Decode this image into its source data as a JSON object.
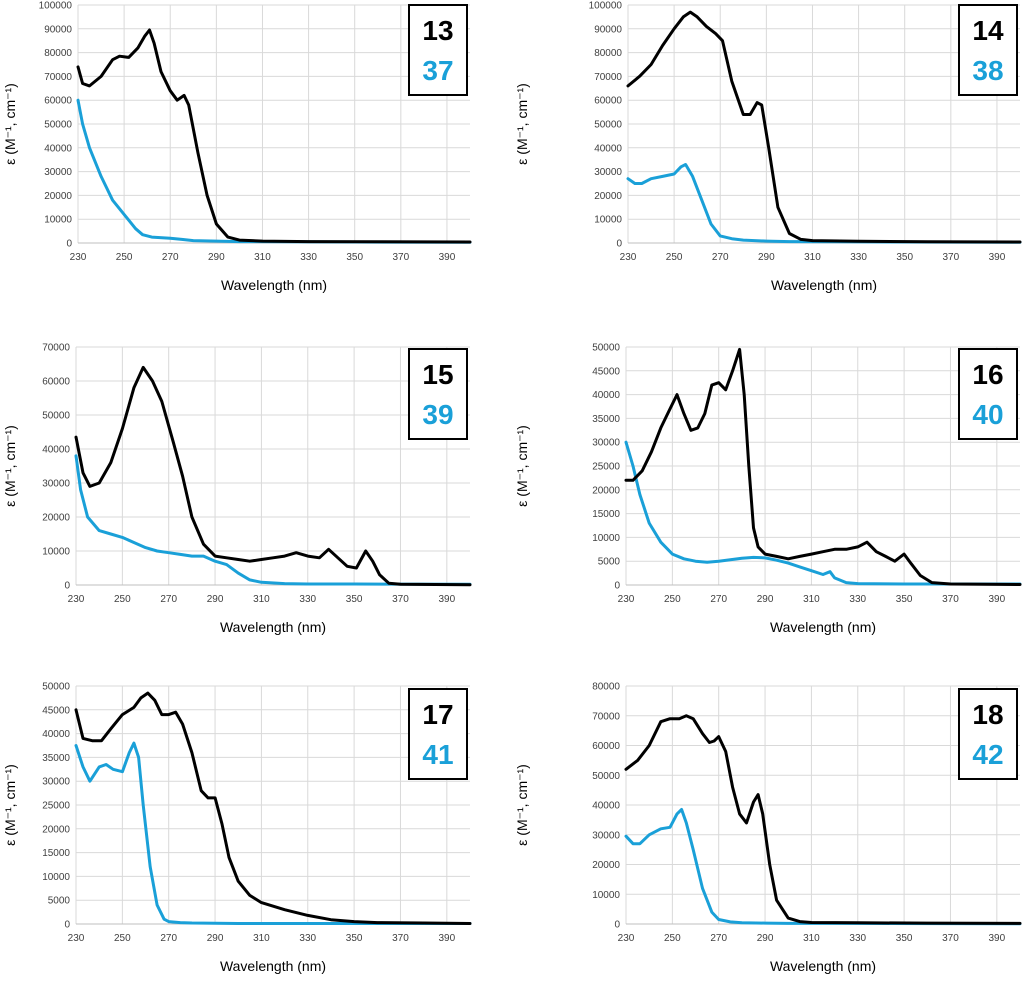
{
  "chart_data": [
    {
      "type": "line",
      "xlabel": "Wavelength (nm)",
      "ylabel": "ε (M⁻¹, cm⁻¹)",
      "xlim": [
        230,
        400
      ],
      "ylim": [
        0,
        100000
      ],
      "x_ticks": [
        230,
        250,
        270,
        290,
        310,
        330,
        350,
        370,
        390
      ],
      "y_ticks": [
        0,
        10000,
        20000,
        30000,
        40000,
        50000,
        60000,
        70000,
        80000,
        90000,
        100000
      ],
      "grid": true,
      "legend_position": "top-right",
      "series": [
        {
          "name": "13",
          "color": "#000000",
          "x": [
            230,
            232,
            235,
            240,
            245,
            248,
            252,
            256,
            259,
            261,
            263,
            266,
            270,
            273,
            276,
            278,
            282,
            286,
            290,
            295,
            300,
            310,
            330,
            360,
            400
          ],
          "y": [
            74000,
            67000,
            66000,
            70000,
            77000,
            78500,
            78000,
            82000,
            87000,
            89500,
            84000,
            72000,
            64000,
            60000,
            62000,
            58000,
            38000,
            20000,
            8000,
            2500,
            1200,
            800,
            600,
            500,
            400
          ]
        },
        {
          "name": "37",
          "color": "#1aa0d8",
          "x": [
            230,
            232,
            235,
            240,
            245,
            250,
            255,
            258,
            262,
            270,
            275,
            280,
            290,
            300,
            320,
            350,
            400
          ],
          "y": [
            60000,
            50000,
            40000,
            28000,
            18000,
            12000,
            6000,
            3500,
            2500,
            2000,
            1500,
            1000,
            800,
            600,
            500,
            400,
            300
          ]
        }
      ]
    },
    {
      "type": "line",
      "xlabel": "Wavelength (nm)",
      "ylabel": "ε (M⁻¹, cm⁻¹)",
      "xlim": [
        230,
        400
      ],
      "ylim": [
        0,
        100000
      ],
      "x_ticks": [
        230,
        250,
        270,
        290,
        310,
        330,
        350,
        370,
        390
      ],
      "y_ticks": [
        0,
        10000,
        20000,
        30000,
        40000,
        50000,
        60000,
        70000,
        80000,
        90000,
        100000
      ],
      "grid": true,
      "legend_position": "top-right",
      "series": [
        {
          "name": "14",
          "color": "#000000",
          "x": [
            230,
            235,
            240,
            245,
            250,
            254,
            257,
            260,
            264,
            268,
            271,
            275,
            280,
            283,
            286,
            288,
            291,
            295,
            300,
            305,
            310,
            330,
            360,
            400
          ],
          "y": [
            66000,
            70000,
            75000,
            83000,
            90000,
            95000,
            97000,
            95000,
            91000,
            88000,
            85000,
            68000,
            54000,
            54000,
            59000,
            58000,
            40000,
            15000,
            4000,
            1500,
            1000,
            700,
            500,
            400
          ]
        },
        {
          "name": "38",
          "color": "#1aa0d8",
          "x": [
            230,
            233,
            236,
            240,
            245,
            250,
            253,
            255,
            258,
            262,
            266,
            270,
            275,
            280,
            290,
            300,
            320,
            350,
            400
          ],
          "y": [
            27000,
            25000,
            25000,
            27000,
            28000,
            29000,
            32000,
            33000,
            28000,
            18000,
            8000,
            3000,
            1800,
            1200,
            800,
            600,
            500,
            400,
            300
          ]
        }
      ]
    },
    {
      "type": "line",
      "xlabel": "Wavelength (nm)",
      "ylabel": "ε (M⁻¹, cm⁻¹)",
      "xlim": [
        230,
        400
      ],
      "ylim": [
        0,
        70000
      ],
      "x_ticks": [
        230,
        250,
        270,
        290,
        310,
        330,
        350,
        370,
        390
      ],
      "y_ticks": [
        0,
        10000,
        20000,
        30000,
        40000,
        50000,
        60000,
        70000
      ],
      "grid": true,
      "legend_position": "top-right",
      "series": [
        {
          "name": "15",
          "color": "#000000",
          "x": [
            230,
            233,
            236,
            240,
            245,
            250,
            255,
            259,
            263,
            267,
            272,
            276,
            280,
            285,
            290,
            295,
            300,
            305,
            310,
            315,
            320,
            325,
            330,
            335,
            339,
            343,
            347,
            351,
            355,
            358,
            361,
            365,
            370,
            400
          ],
          "y": [
            43500,
            33000,
            29000,
            30000,
            36000,
            46000,
            58000,
            64000,
            60000,
            54000,
            42000,
            32000,
            20000,
            12000,
            8500,
            8000,
            7500,
            7000,
            7500,
            8000,
            8500,
            9500,
            8500,
            8000,
            10500,
            8000,
            5500,
            5000,
            10000,
            7000,
            3000,
            500,
            200,
            100
          ]
        },
        {
          "name": "39",
          "color": "#1aa0d8",
          "x": [
            230,
            232,
            235,
            240,
            245,
            250,
            255,
            260,
            265,
            270,
            275,
            280,
            285,
            290,
            295,
            300,
            305,
            310,
            320,
            330,
            350,
            400
          ],
          "y": [
            38000,
            28000,
            20000,
            16000,
            15000,
            14000,
            12500,
            11000,
            10000,
            9500,
            9000,
            8500,
            8500,
            7000,
            6000,
            3500,
            1500,
            800,
            400,
            300,
            300,
            200
          ]
        }
      ]
    },
    {
      "type": "line",
      "xlabel": "Wavelength (nm)",
      "ylabel": "ε (M⁻¹, cm⁻¹)",
      "xlim": [
        230,
        400
      ],
      "ylim": [
        0,
        50000
      ],
      "x_ticks": [
        230,
        250,
        270,
        290,
        310,
        330,
        350,
        370,
        390
      ],
      "y_ticks": [
        0,
        5000,
        10000,
        15000,
        20000,
        25000,
        30000,
        35000,
        40000,
        45000,
        50000
      ],
      "grid": true,
      "legend_position": "top-right",
      "series": [
        {
          "name": "16",
          "color": "#000000",
          "x": [
            230,
            233,
            237,
            241,
            245,
            249,
            252,
            255,
            258,
            261,
            264,
            267,
            270,
            273,
            276,
            279,
            281,
            283,
            285,
            287,
            290,
            295,
            300,
            305,
            310,
            315,
            320,
            325,
            330,
            334,
            338,
            342,
            346,
            350,
            353,
            357,
            362,
            370,
            400
          ],
          "y": [
            22000,
            22000,
            24000,
            28000,
            33000,
            37000,
            40000,
            36000,
            32500,
            33000,
            36000,
            42000,
            42500,
            41000,
            45000,
            49500,
            40000,
            25000,
            12000,
            8000,
            6500,
            6000,
            5500,
            6000,
            6500,
            7000,
            7500,
            7500,
            8000,
            9000,
            7000,
            6000,
            5000,
            6500,
            4500,
            2000,
            500,
            200,
            100
          ]
        },
        {
          "name": "40",
          "color": "#1aa0d8",
          "x": [
            230,
            233,
            236,
            240,
            245,
            250,
            255,
            260,
            265,
            270,
            275,
            280,
            285,
            290,
            295,
            300,
            305,
            310,
            315,
            318,
            320,
            325,
            330,
            350,
            400
          ],
          "y": [
            30000,
            25000,
            19000,
            13000,
            9000,
            6500,
            5500,
            5000,
            4800,
            5000,
            5300,
            5600,
            5800,
            5700,
            5200,
            4600,
            3800,
            3000,
            2200,
            2800,
            1500,
            500,
            300,
            200,
            200
          ]
        }
      ]
    },
    {
      "type": "line",
      "xlabel": "Wavelength (nm)",
      "ylabel": "ε (M⁻¹, cm⁻¹)",
      "xlim": [
        230,
        400
      ],
      "ylim": [
        0,
        50000
      ],
      "x_ticks": [
        230,
        250,
        270,
        290,
        310,
        330,
        350,
        370,
        390
      ],
      "y_ticks": [
        0,
        5000,
        10000,
        15000,
        20000,
        25000,
        30000,
        35000,
        40000,
        45000,
        50000
      ],
      "grid": true,
      "legend_position": "top-right",
      "series": [
        {
          "name": "17",
          "color": "#000000",
          "x": [
            230,
            233,
            237,
            241,
            245,
            250,
            255,
            258,
            261,
            264,
            267,
            270,
            273,
            276,
            280,
            284,
            287,
            290,
            293,
            296,
            300,
            305,
            310,
            320,
            330,
            340,
            350,
            360,
            380,
            400
          ],
          "y": [
            45000,
            39000,
            38500,
            38500,
            41000,
            44000,
            45500,
            47500,
            48500,
            47000,
            44000,
            44000,
            44500,
            42000,
            36000,
            28000,
            26500,
            26500,
            21000,
            14000,
            9000,
            6000,
            4500,
            3000,
            1800,
            900,
            500,
            300,
            200,
            100
          ]
        },
        {
          "name": "41",
          "color": "#1aa0d8",
          "x": [
            230,
            233,
            236,
            240,
            243,
            246,
            250,
            253,
            255,
            257,
            259,
            262,
            265,
            268,
            270,
            275,
            280,
            300,
            400
          ],
          "y": [
            37500,
            33000,
            30000,
            33000,
            33500,
            32500,
            32000,
            36000,
            38000,
            35000,
            25000,
            12000,
            4000,
            1000,
            500,
            300,
            200,
            100,
            100
          ]
        }
      ]
    },
    {
      "type": "line",
      "xlabel": "Wavelength (nm)",
      "ylabel": "ε (M⁻¹, cm⁻¹)",
      "xlim": [
        230,
        400
      ],
      "ylim": [
        0,
        80000
      ],
      "x_ticks": [
        230,
        250,
        270,
        290,
        310,
        330,
        350,
        370,
        390
      ],
      "y_ticks": [
        0,
        10000,
        20000,
        30000,
        40000,
        50000,
        60000,
        70000,
        80000
      ],
      "grid": true,
      "legend_position": "top-right",
      "series": [
        {
          "name": "18",
          "color": "#000000",
          "x": [
            230,
            235,
            240,
            245,
            249,
            253,
            256,
            259,
            263,
            266,
            268,
            270,
            273,
            276,
            279,
            282,
            285,
            287,
            289,
            292,
            295,
            300,
            305,
            310,
            330,
            360,
            400
          ],
          "y": [
            52000,
            55000,
            60000,
            68000,
            69000,
            69000,
            70000,
            69000,
            64000,
            61000,
            61500,
            63000,
            58000,
            46000,
            37000,
            34000,
            41000,
            43500,
            37000,
            20000,
            8000,
            2000,
            800,
            500,
            400,
            300,
            200
          ]
        },
        {
          "name": "42",
          "color": "#1aa0d8",
          "x": [
            230,
            233,
            236,
            240,
            245,
            249,
            252,
            254,
            256,
            259,
            263,
            267,
            270,
            275,
            280,
            290,
            300,
            320,
            400
          ],
          "y": [
            29500,
            27000,
            27000,
            30000,
            32000,
            32500,
            37000,
            38500,
            34000,
            25000,
            12000,
            4000,
            1500,
            700,
            400,
            300,
            200,
            200,
            100
          ]
        }
      ]
    }
  ]
}
